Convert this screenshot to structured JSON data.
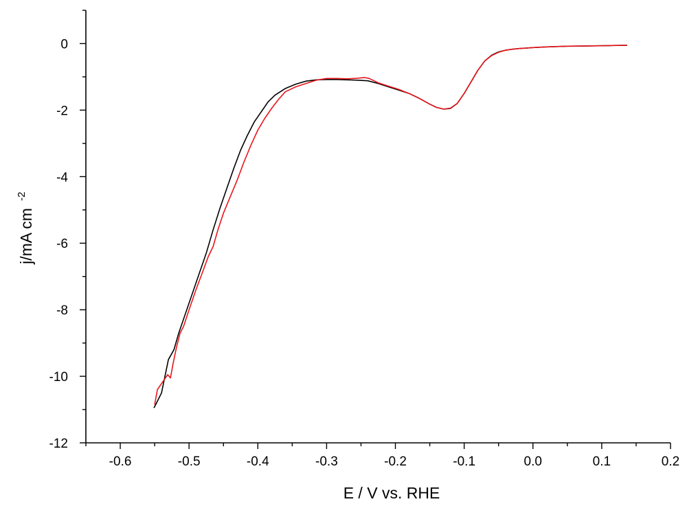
{
  "chart_data": {
    "type": "line",
    "title": "",
    "xlabel": "E / V vs. RHE",
    "ylabel_main": "j/mA cm",
    "ylabel_sup": "-2",
    "xlim": [
      -0.65,
      0.2
    ],
    "ylim": [
      -12,
      1
    ],
    "xticks": [
      -0.6,
      -0.5,
      -0.4,
      -0.3,
      -0.2,
      -0.1,
      0.0,
      0.1,
      0.2
    ],
    "xtick_labels": [
      "-0.6",
      "-0.5",
      "-0.4",
      "-0.3",
      "-0.2",
      "-0.1",
      "0.0",
      "0.1",
      "0.2"
    ],
    "yticks": [
      0,
      -2,
      -4,
      -6,
      -8,
      -10,
      -12
    ],
    "ytick_labels": [
      "0",
      "-2",
      "-4",
      "-6",
      "-8",
      "-10",
      "-12"
    ],
    "grid": false,
    "legend": "none",
    "series": [
      {
        "color": "#000000",
        "x": [
          -0.551,
          -0.546,
          -0.54,
          -0.535,
          -0.53,
          -0.522,
          -0.515,
          -0.505,
          -0.495,
          -0.485,
          -0.475,
          -0.465,
          -0.455,
          -0.445,
          -0.435,
          -0.425,
          -0.415,
          -0.405,
          -0.395,
          -0.385,
          -0.375,
          -0.36,
          -0.345,
          -0.33,
          -0.315,
          -0.3,
          -0.285,
          -0.27,
          -0.255,
          -0.24,
          -0.225,
          -0.21,
          -0.195,
          -0.18,
          -0.165,
          -0.15,
          -0.14,
          -0.13,
          -0.12,
          -0.11,
          -0.1,
          -0.09,
          -0.08,
          -0.07,
          -0.06,
          -0.05,
          -0.04,
          -0.03,
          -0.02,
          0.0,
          0.02,
          0.05,
          0.08,
          0.11,
          0.137
        ],
        "y": [
          -10.95,
          -10.75,
          -10.5,
          -10.0,
          -9.5,
          -9.2,
          -8.7,
          -8.1,
          -7.5,
          -6.9,
          -6.3,
          -5.6,
          -4.95,
          -4.35,
          -3.75,
          -3.2,
          -2.75,
          -2.35,
          -2.05,
          -1.75,
          -1.55,
          -1.35,
          -1.22,
          -1.13,
          -1.09,
          -1.08,
          -1.08,
          -1.09,
          -1.1,
          -1.12,
          -1.2,
          -1.3,
          -1.4,
          -1.5,
          -1.65,
          -1.82,
          -1.92,
          -1.97,
          -1.95,
          -1.8,
          -1.5,
          -1.15,
          -0.8,
          -0.52,
          -0.35,
          -0.25,
          -0.2,
          -0.17,
          -0.15,
          -0.12,
          -0.1,
          -0.08,
          -0.07,
          -0.06,
          -0.05
        ]
      },
      {
        "color": "#e8141a",
        "x": [
          -0.55,
          -0.546,
          -0.541,
          -0.536,
          -0.531,
          -0.527,
          -0.523,
          -0.518,
          -0.513,
          -0.508,
          -0.5,
          -0.49,
          -0.48,
          -0.472,
          -0.465,
          -0.458,
          -0.45,
          -0.44,
          -0.43,
          -0.42,
          -0.41,
          -0.4,
          -0.39,
          -0.38,
          -0.37,
          -0.36,
          -0.345,
          -0.33,
          -0.315,
          -0.3,
          -0.285,
          -0.27,
          -0.255,
          -0.245,
          -0.238,
          -0.225,
          -0.21,
          -0.195,
          -0.18,
          -0.165,
          -0.15,
          -0.14,
          -0.13,
          -0.12,
          -0.11,
          -0.1,
          -0.09,
          -0.08,
          -0.07,
          -0.06,
          -0.05,
          -0.04,
          -0.03,
          -0.02,
          0.0,
          0.02,
          0.05,
          0.08,
          0.11,
          0.137
        ],
        "y": [
          -10.85,
          -10.4,
          -10.25,
          -10.1,
          -9.95,
          -10.05,
          -9.6,
          -9.1,
          -8.7,
          -8.5,
          -8.0,
          -7.4,
          -6.85,
          -6.4,
          -6.1,
          -5.6,
          -5.1,
          -4.6,
          -4.1,
          -3.55,
          -3.05,
          -2.6,
          -2.25,
          -1.95,
          -1.68,
          -1.45,
          -1.3,
          -1.2,
          -1.1,
          -1.05,
          -1.05,
          -1.06,
          -1.04,
          -1.02,
          -1.05,
          -1.18,
          -1.28,
          -1.38,
          -1.5,
          -1.65,
          -1.82,
          -1.92,
          -1.97,
          -1.94,
          -1.8,
          -1.5,
          -1.15,
          -0.8,
          -0.52,
          -0.36,
          -0.26,
          -0.2,
          -0.17,
          -0.15,
          -0.12,
          -0.1,
          -0.08,
          -0.07,
          -0.06,
          -0.05
        ]
      }
    ]
  }
}
